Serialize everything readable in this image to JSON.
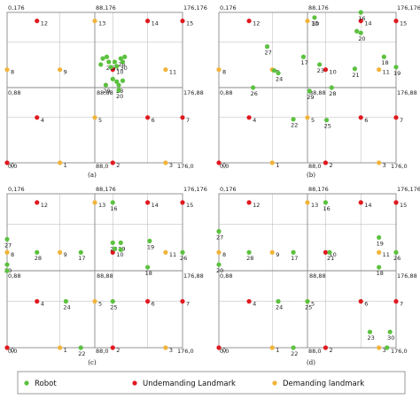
{
  "colors": {
    "robot": "#5cc13f",
    "undemanding": "#e0191f",
    "demanding": "#f1b43a",
    "grid": "#8a8a8a"
  },
  "legend": [
    {
      "key": "robot",
      "label": "Robot"
    },
    {
      "key": "undemanding",
      "label": "Undemanding Landmark"
    },
    {
      "key": "demanding",
      "label": "Demanding landmark"
    }
  ],
  "chart_data": [
    {
      "type": "scatter",
      "caption": "(a)",
      "xlim": [
        0,
        176
      ],
      "ylim": [
        0,
        176
      ],
      "corner_labels": [
        "0,176",
        "88,176",
        "176,176",
        "0,88",
        "88,88",
        "176,88",
        "0,0",
        "88,0",
        "176,0"
      ],
      "landmarks": [
        {
          "id": "12",
          "x": 30,
          "y": 166,
          "kind": "undemanding"
        },
        {
          "id": "13",
          "x": 88,
          "y": 166,
          "kind": "demanding"
        },
        {
          "id": "14",
          "x": 141,
          "y": 166,
          "kind": "undemanding"
        },
        {
          "id": "15",
          "x": 176,
          "y": 166,
          "kind": "undemanding"
        },
        {
          "id": "8",
          "x": 0,
          "y": 109,
          "kind": "demanding"
        },
        {
          "id": "9",
          "x": 53,
          "y": 109,
          "kind": "demanding"
        },
        {
          "id": "10",
          "x": 106,
          "y": 109,
          "kind": "undemanding"
        },
        {
          "id": "11",
          "x": 159,
          "y": 109,
          "kind": "demanding"
        },
        {
          "id": "4",
          "x": 30,
          "y": 53,
          "kind": "undemanding"
        },
        {
          "id": "5",
          "x": 88,
          "y": 53,
          "kind": "demanding"
        },
        {
          "id": "6",
          "x": 141,
          "y": 53,
          "kind": "undemanding"
        },
        {
          "id": "7",
          "x": 176,
          "y": 53,
          "kind": "undemanding"
        },
        {
          "id": "0",
          "x": 0,
          "y": 0,
          "kind": "undemanding"
        },
        {
          "id": "1",
          "x": 53,
          "y": 0,
          "kind": "demanding"
        },
        {
          "id": "2",
          "x": 106,
          "y": 0,
          "kind": "undemanding"
        },
        {
          "id": "3",
          "x": 159,
          "y": 0,
          "kind": "demanding"
        }
      ],
      "robots": [
        {
          "id": "26",
          "x": 114,
          "y": 122
        },
        {
          "id": "21",
          "x": 102,
          "y": 118
        },
        {
          "id": "31",
          "x": 108,
          "y": 118
        },
        {
          "id": "30",
          "x": 116,
          "y": 118
        },
        {
          "id": "29",
          "x": 99,
          "y": 91
        },
        {
          "id": "28",
          "x": 112,
          "y": 91
        },
        {
          "id": "20",
          "x": 112,
          "y": 85
        },
        {
          "id": "",
          "x": 96,
          "y": 122
        },
        {
          "id": "",
          "x": 100,
          "y": 124
        },
        {
          "id": "",
          "x": 104,
          "y": 112
        },
        {
          "id": "",
          "x": 110,
          "y": 113
        },
        {
          "id": "",
          "x": 94,
          "y": 115
        },
        {
          "id": "",
          "x": 118,
          "y": 124
        },
        {
          "id": "",
          "x": 110,
          "y": 95
        },
        {
          "id": "",
          "x": 116,
          "y": 96
        },
        {
          "id": "",
          "x": 106,
          "y": 98
        }
      ]
    },
    {
      "type": "scatter",
      "caption": "(b)",
      "xlim": [
        0,
        176
      ],
      "ylim": [
        0,
        176
      ],
      "corner_labels": [
        "0,176",
        "88,176",
        "176,176",
        "0,88",
        "88,88",
        "176,88",
        "0,0",
        "88,0",
        "176,0"
      ],
      "landmarks": [
        {
          "id": "12",
          "x": 30,
          "y": 166,
          "kind": "undemanding"
        },
        {
          "id": "13",
          "x": 88,
          "y": 166,
          "kind": "demanding"
        },
        {
          "id": "14",
          "x": 141,
          "y": 166,
          "kind": "undemanding"
        },
        {
          "id": "15",
          "x": 176,
          "y": 166,
          "kind": "undemanding"
        },
        {
          "id": "8",
          "x": 0,
          "y": 109,
          "kind": "demanding"
        },
        {
          "id": "9",
          "x": 53,
          "y": 109,
          "kind": "demanding"
        },
        {
          "id": "10",
          "x": 106,
          "y": 109,
          "kind": "undemanding"
        },
        {
          "id": "11",
          "x": 159,
          "y": 109,
          "kind": "demanding"
        },
        {
          "id": "4",
          "x": 30,
          "y": 53,
          "kind": "undemanding"
        },
        {
          "id": "5",
          "x": 88,
          "y": 53,
          "kind": "demanding"
        },
        {
          "id": "6",
          "x": 141,
          "y": 53,
          "kind": "undemanding"
        },
        {
          "id": "7",
          "x": 176,
          "y": 53,
          "kind": "undemanding"
        },
        {
          "id": "0",
          "x": 0,
          "y": 0,
          "kind": "undemanding"
        },
        {
          "id": "1",
          "x": 53,
          "y": 0,
          "kind": "demanding"
        },
        {
          "id": "2",
          "x": 106,
          "y": 0,
          "kind": "undemanding"
        },
        {
          "id": "3",
          "x": 159,
          "y": 0,
          "kind": "demanding"
        }
      ],
      "robots": [
        {
          "id": "16",
          "x": 141,
          "y": 176
        },
        {
          "id": "30",
          "x": 95,
          "y": 170
        },
        {
          "id": "20",
          "x": 141,
          "y": 152
        },
        {
          "id": "27",
          "x": 48,
          "y": 136
        },
        {
          "id": "17",
          "x": 84,
          "y": 124
        },
        {
          "id": "18",
          "x": 164,
          "y": 124
        },
        {
          "id": "23",
          "x": 100,
          "y": 115
        },
        {
          "id": "21",
          "x": 135,
          "y": 110
        },
        {
          "id": "24",
          "x": 59,
          "y": 105
        },
        {
          "id": "19",
          "x": 176,
          "y": 112
        },
        {
          "id": "26",
          "x": 34,
          "y": 88
        },
        {
          "id": "29",
          "x": 90,
          "y": 84
        },
        {
          "id": "28",
          "x": 112,
          "y": 88
        },
        {
          "id": "25",
          "x": 107,
          "y": 50
        },
        {
          "id": "22",
          "x": 74,
          "y": 51
        },
        {
          "id": "",
          "x": 55,
          "y": 108
        },
        {
          "id": "",
          "x": 137,
          "y": 154
        }
      ]
    },
    {
      "type": "scatter",
      "caption": "(c)",
      "xlim": [
        0,
        176
      ],
      "ylim": [
        0,
        176
      ],
      "corner_labels": [
        "0,176",
        "88,176",
        "176,176",
        "0,88",
        "88,88",
        "176,88",
        "0,0",
        "88,0",
        "176,0"
      ],
      "landmarks": [
        {
          "id": "12",
          "x": 30,
          "y": 166,
          "kind": "undemanding"
        },
        {
          "id": "13",
          "x": 88,
          "y": 166,
          "kind": "demanding"
        },
        {
          "id": "14",
          "x": 141,
          "y": 166,
          "kind": "undemanding"
        },
        {
          "id": "15",
          "x": 176,
          "y": 166,
          "kind": "undemanding"
        },
        {
          "id": "8",
          "x": 0,
          "y": 109,
          "kind": "demanding"
        },
        {
          "id": "9",
          "x": 53,
          "y": 109,
          "kind": "demanding"
        },
        {
          "id": "10",
          "x": 106,
          "y": 109,
          "kind": "undemanding"
        },
        {
          "id": "11",
          "x": 159,
          "y": 109,
          "kind": "demanding"
        },
        {
          "id": "4",
          "x": 30,
          "y": 53,
          "kind": "undemanding"
        },
        {
          "id": "5",
          "x": 88,
          "y": 53,
          "kind": "demanding"
        },
        {
          "id": "6",
          "x": 141,
          "y": 53,
          "kind": "undemanding"
        },
        {
          "id": "7",
          "x": 176,
          "y": 53,
          "kind": "undemanding"
        },
        {
          "id": "0",
          "x": 0,
          "y": 0,
          "kind": "undemanding"
        },
        {
          "id": "1",
          "x": 53,
          "y": 0,
          "kind": "demanding"
        },
        {
          "id": "2",
          "x": 106,
          "y": 0,
          "kind": "undemanding"
        },
        {
          "id": "3",
          "x": 159,
          "y": 0,
          "kind": "demanding"
        }
      ],
      "robots": [
        {
          "id": "16",
          "x": 106,
          "y": 166
        },
        {
          "id": "27",
          "x": 0,
          "y": 124
        },
        {
          "id": "28",
          "x": 30,
          "y": 109
        },
        {
          "id": "17",
          "x": 74,
          "y": 109
        },
        {
          "id": "23",
          "x": 106,
          "y": 120
        },
        {
          "id": "29",
          "x": 114,
          "y": 120
        },
        {
          "id": "19",
          "x": 143,
          "y": 122
        },
        {
          "id": "18",
          "x": 141,
          "y": 92
        },
        {
          "id": "26",
          "x": 176,
          "y": 109
        },
        {
          "id": "20",
          "x": 0,
          "y": 95
        },
        {
          "id": "24",
          "x": 59,
          "y": 53
        },
        {
          "id": "25",
          "x": 106,
          "y": 53
        },
        {
          "id": "22",
          "x": 74,
          "y": 0
        },
        {
          "id": "",
          "x": 108,
          "y": 113
        },
        {
          "id": "",
          "x": 114,
          "y": 112
        },
        {
          "id": "",
          "x": 0,
          "y": 88
        }
      ]
    },
    {
      "type": "scatter",
      "caption": "(d)",
      "xlim": [
        0,
        176
      ],
      "ylim": [
        0,
        176
      ],
      "corner_labels": [
        "0,176",
        "88,176",
        "176,176",
        "0,88",
        "88,88",
        "176,88",
        "0,0",
        "88,0",
        "176,0"
      ],
      "landmarks": [
        {
          "id": "12",
          "x": 30,
          "y": 166,
          "kind": "undemanding"
        },
        {
          "id": "13",
          "x": 88,
          "y": 166,
          "kind": "demanding"
        },
        {
          "id": "14",
          "x": 141,
          "y": 166,
          "kind": "undemanding"
        },
        {
          "id": "15",
          "x": 176,
          "y": 166,
          "kind": "undemanding"
        },
        {
          "id": "8",
          "x": 0,
          "y": 109,
          "kind": "demanding"
        },
        {
          "id": "9",
          "x": 53,
          "y": 109,
          "kind": "demanding"
        },
        {
          "id": "10",
          "x": 106,
          "y": 109,
          "kind": "undemanding"
        },
        {
          "id": "11",
          "x": 159,
          "y": 109,
          "kind": "demanding"
        },
        {
          "id": "4",
          "x": 30,
          "y": 53,
          "kind": "undemanding"
        },
        {
          "id": "5",
          "x": 88,
          "y": 53,
          "kind": "demanding"
        },
        {
          "id": "6",
          "x": 141,
          "y": 53,
          "kind": "undemanding"
        },
        {
          "id": "7",
          "x": 176,
          "y": 53,
          "kind": "undemanding"
        },
        {
          "id": "0",
          "x": 0,
          "y": 0,
          "kind": "undemanding"
        },
        {
          "id": "1",
          "x": 53,
          "y": 0,
          "kind": "demanding"
        },
        {
          "id": "2",
          "x": 106,
          "y": 0,
          "kind": "undemanding"
        },
        {
          "id": "3",
          "x": 159,
          "y": 0,
          "kind": "demanding"
        }
      ],
      "robots": [
        {
          "id": "16",
          "x": 106,
          "y": 166
        },
        {
          "id": "27",
          "x": 0,
          "y": 133
        },
        {
          "id": "28",
          "x": 30,
          "y": 109
        },
        {
          "id": "17",
          "x": 74,
          "y": 109
        },
        {
          "id": "21",
          "x": 110,
          "y": 109
        },
        {
          "id": "19",
          "x": 159,
          "y": 126
        },
        {
          "id": "26",
          "x": 176,
          "y": 109
        },
        {
          "id": "18",
          "x": 159,
          "y": 92
        },
        {
          "id": "20",
          "x": 0,
          "y": 95
        },
        {
          "id": "24",
          "x": 59,
          "y": 53
        },
        {
          "id": "25",
          "x": 88,
          "y": 53
        },
        {
          "id": "23",
          "x": 150,
          "y": 18
        },
        {
          "id": "30",
          "x": 170,
          "y": 18
        },
        {
          "id": "22",
          "x": 74,
          "y": 0
        },
        {
          "id": "",
          "x": 167,
          "y": 0
        }
      ]
    }
  ]
}
